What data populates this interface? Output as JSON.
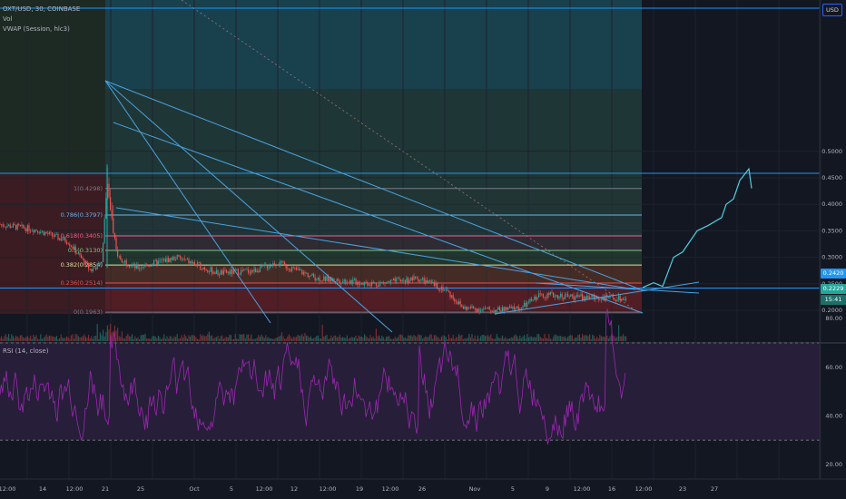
{
  "header": {
    "symbol_line": "OXT/USD, 30, COINBASE",
    "vol_label": "Vol",
    "vwap_label": "VWAP (Session, hlc3)",
    "rsi_label": "RSI (14, close)"
  },
  "currency_button": "USD",
  "price_labels": {
    "upper": "0.2420",
    "current": "0.2229",
    "countdown": "15:41"
  },
  "colors": {
    "background": "#131722",
    "grid": "#1e222d",
    "trendline": "#4aa3df",
    "rsi_line": "#9c27b0",
    "rsi_band": "#2a1f3d",
    "candle_up": "#26a69a",
    "candle_down": "#ef5350",
    "projection": "#4dd0e1"
  },
  "chart_data": [
    {
      "type": "candlestick",
      "title": "OXT/USD, 30, COINBASE",
      "y_axis": {
        "ticks": [
          0.5,
          0.45,
          0.4,
          0.35,
          0.3,
          0.25,
          0.2
        ],
        "tick_labels": [
          "0.5000",
          "0.4500",
          "0.4000",
          "0.3500",
          "0.3000",
          "0.2500",
          "0.2000"
        ]
      },
      "x_axis": {
        "tick_labels": [
          "12:00",
          "14",
          "12:00",
          "21",
          "25",
          "Oct",
          "5",
          "12:00",
          "12",
          "12:00",
          "19",
          "12:00",
          "26",
          "Nov",
          "5",
          "9",
          "12:00",
          "16",
          "12:00",
          "23",
          "27"
        ]
      },
      "price_path": [
        {
          "t": 0,
          "p": 0.362
        },
        {
          "t": 40,
          "p": 0.352
        },
        {
          "t": 75,
          "p": 0.33
        },
        {
          "t": 100,
          "p": 0.275
        },
        {
          "t": 112,
          "p": 0.29
        },
        {
          "t": 118,
          "p": 0.445
        },
        {
          "t": 124,
          "p": 0.36
        },
        {
          "t": 130,
          "p": 0.3
        },
        {
          "t": 150,
          "p": 0.28
        },
        {
          "t": 195,
          "p": 0.3
        },
        {
          "t": 240,
          "p": 0.27
        },
        {
          "t": 280,
          "p": 0.275
        },
        {
          "t": 305,
          "p": 0.29
        },
        {
          "t": 350,
          "p": 0.26
        },
        {
          "t": 415,
          "p": 0.25
        },
        {
          "t": 460,
          "p": 0.26
        },
        {
          "t": 490,
          "p": 0.24
        },
        {
          "t": 510,
          "p": 0.205
        },
        {
          "t": 545,
          "p": 0.2
        },
        {
          "t": 575,
          "p": 0.205
        },
        {
          "t": 595,
          "p": 0.23
        },
        {
          "t": 640,
          "p": 0.225
        },
        {
          "t": 690,
          "p": 0.222
        }
      ],
      "fib_retracement": {
        "levels": [
          {
            "ratio": 1,
            "price": 0.4298,
            "label": "1(0.4298)"
          },
          {
            "ratio": 0.786,
            "price": 0.3797,
            "label": "0.786(0.3797)"
          },
          {
            "ratio": 0.618,
            "price": 0.3405,
            "label": "0.618(0.3405)"
          },
          {
            "ratio": 0.5,
            "price": 0.313,
            "label": "0.5(0.3130)"
          },
          {
            "ratio": 0.382,
            "price": 0.2854,
            "label": "0.382(0.2854)"
          },
          {
            "ratio": 0.236,
            "price": 0.2514,
            "label": "0.236(0.2514)"
          },
          {
            "ratio": 0,
            "price": 0.1963,
            "label": "0(0.1963)"
          }
        ]
      },
      "horizontal_lines": [
        0.242,
        0.4585
      ],
      "projection_path": [
        {
          "t": 708,
          "p": 0.243
        },
        {
          "t": 720,
          "p": 0.252
        },
        {
          "t": 730,
          "p": 0.245
        },
        {
          "t": 742,
          "p": 0.3
        },
        {
          "t": 752,
          "p": 0.31
        },
        {
          "t": 768,
          "p": 0.35
        },
        {
          "t": 780,
          "p": 0.36
        },
        {
          "t": 795,
          "p": 0.375
        },
        {
          "t": 800,
          "p": 0.4
        },
        {
          "t": 808,
          "p": 0.41
        },
        {
          "t": 815,
          "p": 0.445
        },
        {
          "t": 825,
          "p": 0.467
        },
        {
          "t": 828,
          "p": 0.43
        }
      ]
    },
    {
      "type": "line",
      "title": "RSI (14, close)",
      "y_axis": {
        "ticks": [
          80,
          60,
          40,
          20
        ],
        "tick_labels": [
          "80.00",
          "60.00",
          "40.00",
          "20.00"
        ]
      },
      "band": {
        "upper": 70,
        "lower": 30
      },
      "value_range": [
        25,
        85
      ]
    }
  ]
}
